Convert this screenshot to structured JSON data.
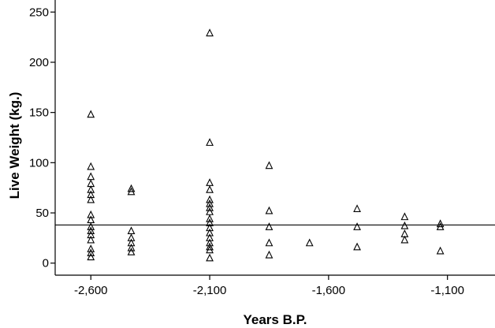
{
  "chart_data": {
    "type": "scatter",
    "title": "",
    "xlabel": "Years B.P.",
    "ylabel": "Live Weight (kg.)",
    "xlim": [
      -2750,
      -900
    ],
    "ylim": [
      -12,
      262
    ],
    "xticks": [
      -2600,
      -2100,
      -1600,
      -1100
    ],
    "xtick_labels": [
      "-2,600",
      "-2,100",
      "-1,600",
      "-1,100"
    ],
    "yticks": [
      0,
      50,
      100,
      150,
      200,
      250
    ],
    "ytick_labels": [
      "0",
      "50",
      "100",
      "150",
      "200",
      "250"
    ],
    "reference_line_y": 38,
    "grid": false,
    "marker": "triangle-open",
    "points": [
      {
        "x": -2600,
        "y": 148
      },
      {
        "x": -2600,
        "y": 96
      },
      {
        "x": -2600,
        "y": 86
      },
      {
        "x": -2600,
        "y": 79
      },
      {
        "x": -2600,
        "y": 73
      },
      {
        "x": -2600,
        "y": 68
      },
      {
        "x": -2600,
        "y": 63
      },
      {
        "x": -2600,
        "y": 48
      },
      {
        "x": -2600,
        "y": 43
      },
      {
        "x": -2600,
        "y": 36
      },
      {
        "x": -2600,
        "y": 32
      },
      {
        "x": -2600,
        "y": 28
      },
      {
        "x": -2600,
        "y": 23
      },
      {
        "x": -2600,
        "y": 14
      },
      {
        "x": -2600,
        "y": 10
      },
      {
        "x": -2600,
        "y": 6
      },
      {
        "x": -2430,
        "y": 74
      },
      {
        "x": -2430,
        "y": 71
      },
      {
        "x": -2430,
        "y": 32
      },
      {
        "x": -2430,
        "y": 25
      },
      {
        "x": -2430,
        "y": 20
      },
      {
        "x": -2430,
        "y": 15
      },
      {
        "x": -2430,
        "y": 11
      },
      {
        "x": -2100,
        "y": 229
      },
      {
        "x": -2100,
        "y": 120
      },
      {
        "x": -2100,
        "y": 80
      },
      {
        "x": -2100,
        "y": 73
      },
      {
        "x": -2100,
        "y": 63
      },
      {
        "x": -2100,
        "y": 59
      },
      {
        "x": -2100,
        "y": 55
      },
      {
        "x": -2100,
        "y": 51
      },
      {
        "x": -2100,
        "y": 44
      },
      {
        "x": -2100,
        "y": 40
      },
      {
        "x": -2100,
        "y": 35
      },
      {
        "x": -2100,
        "y": 30
      },
      {
        "x": -2100,
        "y": 25
      },
      {
        "x": -2100,
        "y": 20
      },
      {
        "x": -2100,
        "y": 16
      },
      {
        "x": -2100,
        "y": 13
      },
      {
        "x": -2100,
        "y": 5
      },
      {
        "x": -1850,
        "y": 97
      },
      {
        "x": -1850,
        "y": 52
      },
      {
        "x": -1850,
        "y": 36
      },
      {
        "x": -1850,
        "y": 20
      },
      {
        "x": -1850,
        "y": 8
      },
      {
        "x": -1680,
        "y": 20
      },
      {
        "x": -1480,
        "y": 54
      },
      {
        "x": -1480,
        "y": 36
      },
      {
        "x": -1480,
        "y": 16
      },
      {
        "x": -1280,
        "y": 46
      },
      {
        "x": -1280,
        "y": 37
      },
      {
        "x": -1280,
        "y": 29
      },
      {
        "x": -1280,
        "y": 23
      },
      {
        "x": -1130,
        "y": 39
      },
      {
        "x": -1130,
        "y": 36
      },
      {
        "x": -1130,
        "y": 12
      }
    ]
  }
}
